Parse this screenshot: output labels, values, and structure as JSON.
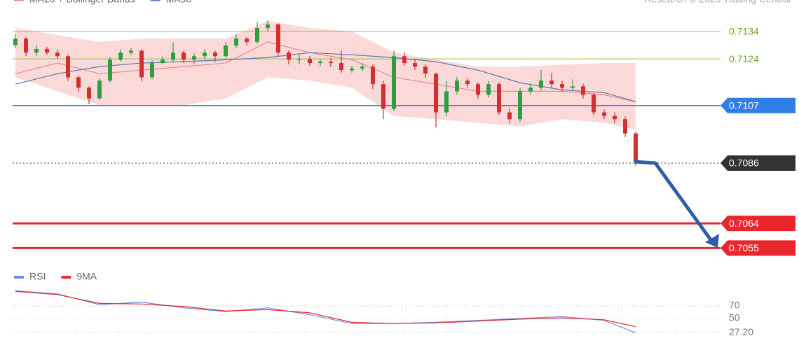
{
  "chart_data": {
    "type": "candlestick",
    "legend": [
      {
        "name": "MA20 + Bollinger Bands",
        "color": "#e88a8a"
      },
      {
        "name": "MA50",
        "color": "#5a78b0"
      }
    ],
    "credit": "Research © 2023 Trading Central",
    "ylim": [
      0.7051,
      0.71455
    ],
    "up_color": "#2e9e3e",
    "down_color": "#d32f2f",
    "open": [
      0.7129,
      0.71314,
      0.71263,
      0.71276,
      0.71263,
      0.7125,
      0.71173,
      0.71135,
      0.71096,
      0.71161,
      0.71237,
      0.71263,
      0.7127,
      0.71173,
      0.71225,
      0.71237,
      0.71263,
      0.71237,
      0.7125,
      0.71263,
      0.7125,
      0.71289,
      0.71314,
      0.71302,
      0.71353,
      0.71366,
      0.71263,
      0.71237,
      0.7124,
      0.71225,
      0.7123,
      0.71225,
      0.71199,
      0.71205,
      0.71212,
      0.71148,
      0.71058,
      0.7125,
      0.71225,
      0.71212,
      0.71186,
      0.71045,
      0.71122,
      0.71161,
      0.71148,
      0.71109,
      0.71148,
      0.71045,
      0.7102,
      0.71122,
      0.71135,
      0.71161,
      0.71148,
      0.71135,
      0.7114,
      0.71109,
      0.71045,
      0.71032,
      0.7102,
      0.70968
    ],
    "high": [
      0.7133,
      0.7132,
      0.7129,
      0.71285,
      0.71275,
      0.71255,
      0.7118,
      0.7114,
      0.7117,
      0.71245,
      0.71275,
      0.7128,
      0.71275,
      0.71235,
      0.7125,
      0.713,
      0.7127,
      0.7126,
      0.71275,
      0.7127,
      0.713,
      0.7133,
      0.7132,
      0.71375,
      0.7138,
      0.7137,
      0.7127,
      0.71255,
      0.7125,
      0.7124,
      0.71245,
      0.7127,
      0.71215,
      0.71225,
      0.7122,
      0.7116,
      0.7127,
      0.71265,
      0.7124,
      0.7122,
      0.7119,
      0.7116,
      0.71175,
      0.7117,
      0.71155,
      0.7116,
      0.71155,
      0.7106,
      0.71135,
      0.7115,
      0.712,
      0.7119,
      0.7116,
      0.71165,
      0.7115,
      0.71115,
      0.71055,
      0.71045,
      0.7103,
      0.70975
    ],
    "low": [
      0.7128,
      0.7125,
      0.7125,
      0.71255,
      0.7124,
      0.7116,
      0.7112,
      0.71075,
      0.7109,
      0.71155,
      0.7123,
      0.71255,
      0.7116,
      0.71165,
      0.7122,
      0.7123,
      0.71225,
      0.7122,
      0.7124,
      0.7123,
      0.71245,
      0.7128,
      0.7129,
      0.71295,
      0.7134,
      0.7125,
      0.7122,
      0.7122,
      0.71215,
      0.71215,
      0.7121,
      0.7119,
      0.7119,
      0.71195,
      0.7113,
      0.7102,
      0.7105,
      0.71215,
      0.712,
      0.7117,
      0.7099,
      0.7103,
      0.7111,
      0.71135,
      0.71095,
      0.711,
      0.71035,
      0.71005,
      0.7101,
      0.7111,
      0.71125,
      0.71135,
      0.7112,
      0.71125,
      0.71095,
      0.71035,
      0.7102,
      0.71005,
      0.70955,
      0.7085
    ],
    "close": [
      0.71314,
      0.71263,
      0.71276,
      0.71263,
      0.7125,
      0.71173,
      0.71135,
      0.71096,
      0.71161,
      0.71237,
      0.71263,
      0.7127,
      0.71173,
      0.71225,
      0.71237,
      0.71263,
      0.71237,
      0.7125,
      0.71263,
      0.7125,
      0.71289,
      0.71314,
      0.71302,
      0.71353,
      0.71366,
      0.71263,
      0.71237,
      0.7124,
      0.71225,
      0.7123,
      0.71225,
      0.71199,
      0.71205,
      0.71212,
      0.71148,
      0.71058,
      0.7125,
      0.71225,
      0.71212,
      0.71186,
      0.71045,
      0.71122,
      0.71161,
      0.71148,
      0.71109,
      0.71148,
      0.71045,
      0.7102,
      0.71122,
      0.71135,
      0.71161,
      0.71148,
      0.71135,
      0.7114,
      0.71109,
      0.71045,
      0.71032,
      0.7102,
      0.70968,
      0.70866
    ],
    "overlay_x": [
      0,
      4,
      8,
      12,
      16,
      20,
      24,
      28,
      32,
      36,
      40,
      44,
      48,
      52,
      56,
      59
    ],
    "band_color": "#fbd0d0",
    "bands": {
      "upper": [
        0.71353,
        0.71327,
        0.71302,
        0.71314,
        0.71314,
        0.71314,
        0.71378,
        0.71353,
        0.7134,
        0.71263,
        0.71237,
        0.71212,
        0.71212,
        0.71219,
        0.71225,
        0.71225
      ],
      "lower": [
        0.71173,
        0.71122,
        0.71071,
        0.71071,
        0.71071,
        0.71096,
        0.71173,
        0.71161,
        0.71135,
        0.71032,
        0.7102,
        0.71007,
        0.70994,
        0.7102,
        0.71007,
        0.70981
      ]
    },
    "series": [
      {
        "name": "MA20",
        "color": "#e88a8a",
        "values": [
          0.71186,
          0.71225,
          0.71186,
          0.71199,
          0.71212,
          0.71225,
          0.71302,
          0.71263,
          0.71237,
          0.71173,
          0.71148,
          0.71122,
          0.71122,
          0.71122,
          0.71109,
          0.71084
        ]
      },
      {
        "name": "MA50",
        "color": "#5a78b0",
        "values": [
          0.71148,
          0.71186,
          0.71212,
          0.71225,
          0.7123,
          0.71237,
          0.71245,
          0.71263,
          0.71255,
          0.71245,
          0.7123,
          0.71199,
          0.71153,
          0.71127,
          0.71117,
          0.71084
        ]
      }
    ],
    "levels": [
      {
        "value": 0.7134,
        "color": "#8bc34a",
        "width": 1,
        "tag": false,
        "dashed": false
      },
      {
        "value": 0.7124,
        "color": "#8bc34a",
        "width": 1,
        "tag": false,
        "dashed": false
      },
      {
        "value": 0.7107,
        "color": "#2f7ee8",
        "width": 1.5,
        "tag": true,
        "dashed": false
      },
      {
        "value": 0.7086,
        "color": "#333333",
        "width": 1,
        "tag": true,
        "dashed": true
      },
      {
        "value": 0.7064,
        "color": "#e8262b",
        "width": 3,
        "tag": true,
        "dashed": false
      },
      {
        "value": 0.7055,
        "color": "#e8262b",
        "width": 3,
        "tag": true,
        "dashed": false
      }
    ],
    "rsi": {
      "ylim": [
        0,
        110
      ],
      "yticks": [
        70,
        50,
        {
          "value": 27.2,
          "label": "27.20"
        }
      ],
      "series": [
        {
          "name": "RSI",
          "color": "#6a8fe0",
          "values": [
            94,
            89,
            72,
            76,
            67,
            61,
            67,
            56,
            42,
            42,
            44,
            47,
            50,
            53,
            47,
            27.2
          ]
        },
        {
          "name": "9MA",
          "color": "#e8262b",
          "values": [
            93,
            88,
            74,
            73,
            69,
            62,
            64,
            59,
            44,
            42,
            43,
            46,
            49,
            51,
            48,
            37
          ]
        }
      ]
    }
  }
}
